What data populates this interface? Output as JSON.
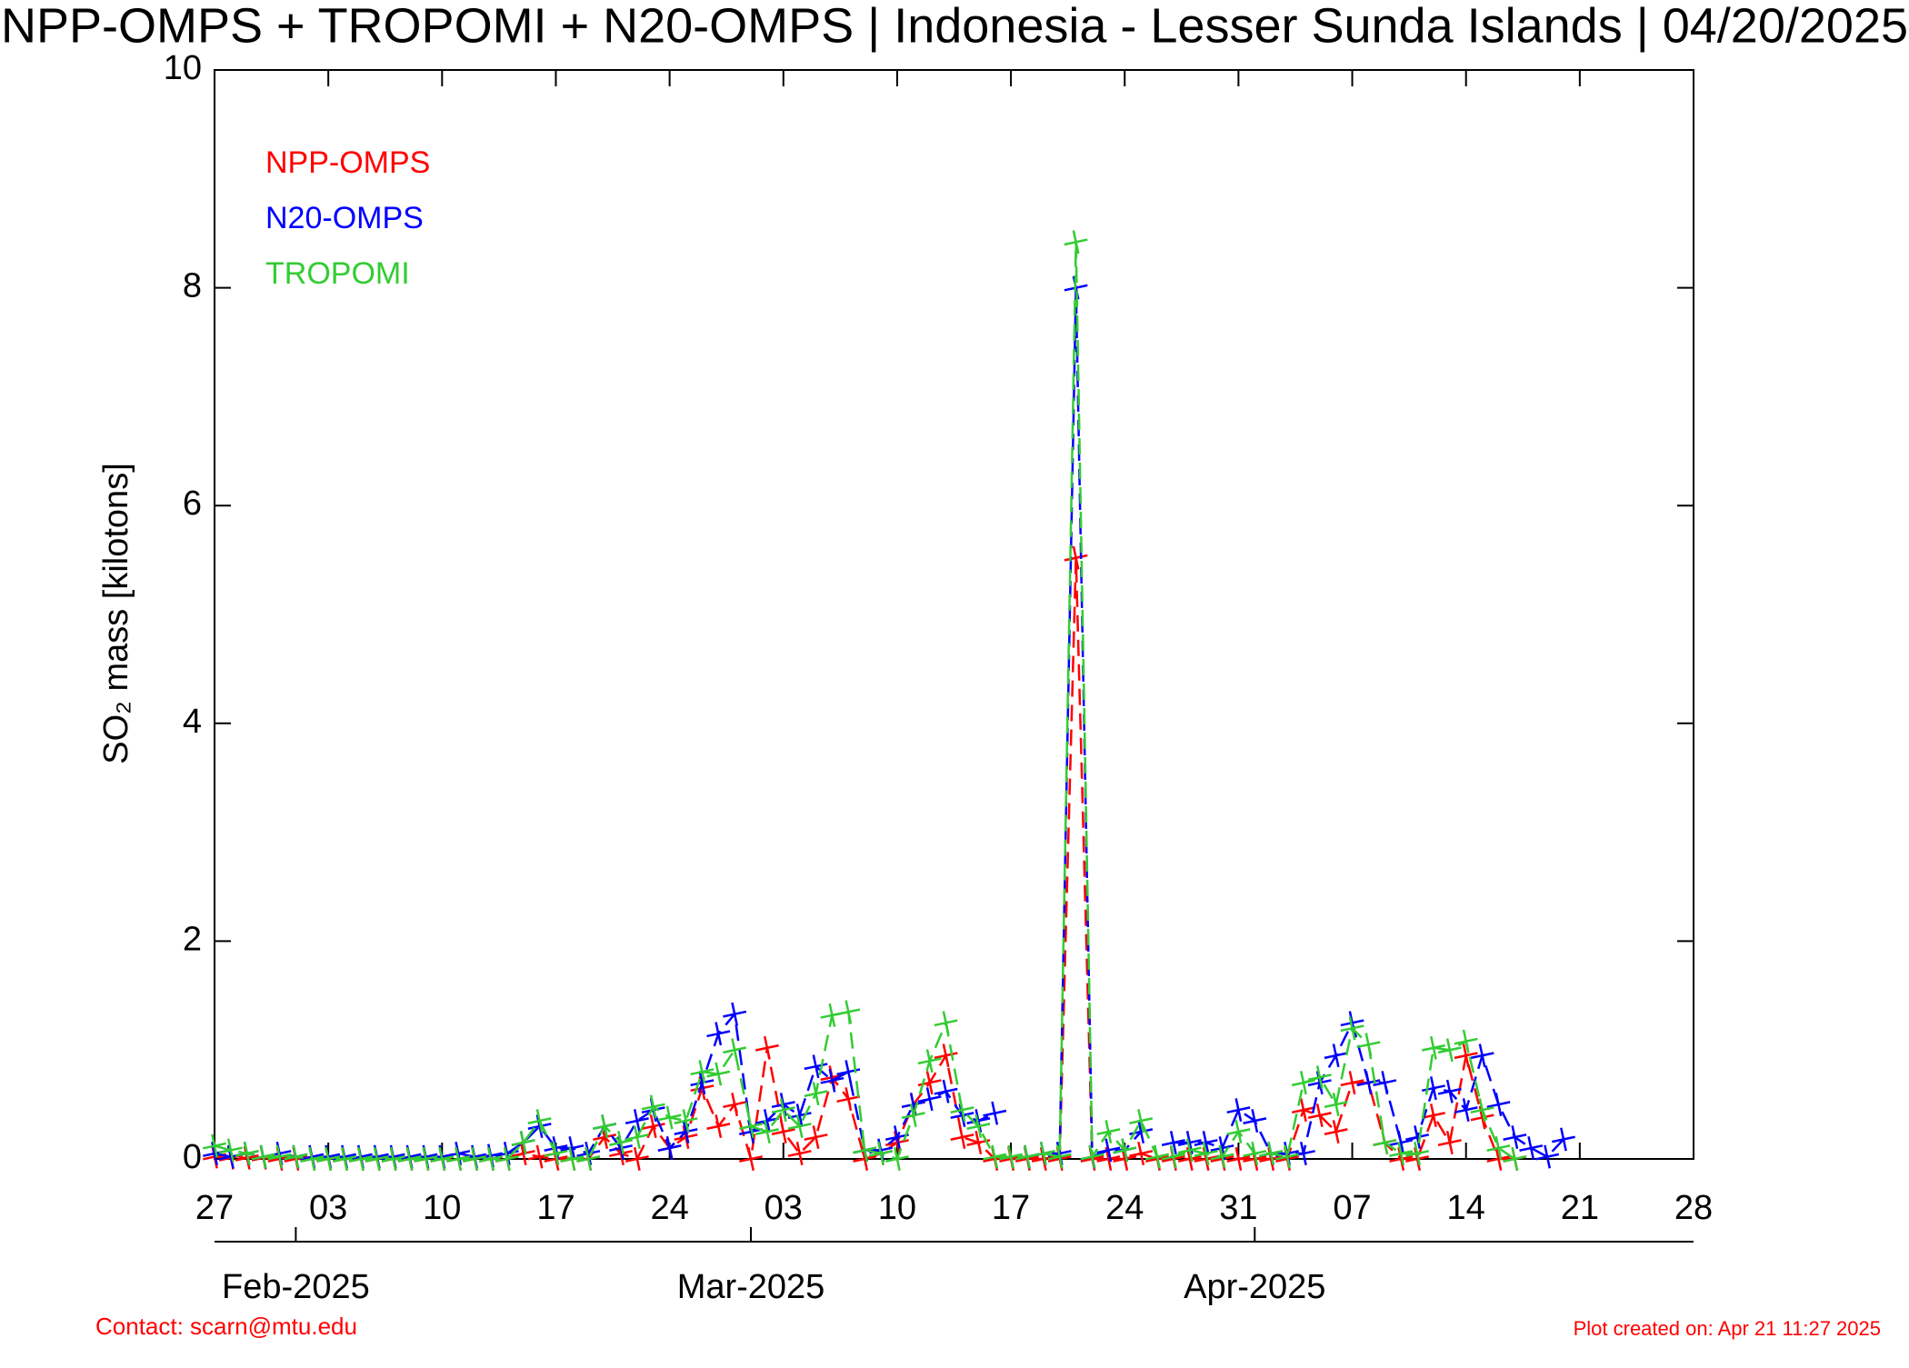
{
  "chart_data": {
    "type": "line",
    "title": "NPP-OMPS + TROPOMI + N20-OMPS | Indonesia - Lesser Sunda Islands | 04/20/2025",
    "y_label": "SO₂ mass [kilotons]",
    "contact": "Contact: scarn@mtu.edu",
    "created": "Plot created on: Apr 21 11:27 2025",
    "x": [
      "2025-01-27",
      "2025-01-28",
      "2025-01-29",
      "2025-01-30",
      "2025-01-31",
      "2025-02-01",
      "2025-02-02",
      "2025-02-03",
      "2025-02-04",
      "2025-02-05",
      "2025-02-06",
      "2025-02-07",
      "2025-02-08",
      "2025-02-09",
      "2025-02-10",
      "2025-02-11",
      "2025-02-12",
      "2025-02-13",
      "2025-02-14",
      "2025-02-15",
      "2025-02-16",
      "2025-02-17",
      "2025-02-18",
      "2025-02-19",
      "2025-02-20",
      "2025-02-21",
      "2025-02-22",
      "2025-02-23",
      "2025-02-24",
      "2025-02-25",
      "2025-02-26",
      "2025-02-27",
      "2025-02-28",
      "2025-03-01",
      "2025-03-02",
      "2025-03-03",
      "2025-03-04",
      "2025-03-05",
      "2025-03-06",
      "2025-03-07",
      "2025-03-08",
      "2025-03-09",
      "2025-03-10",
      "2025-03-11",
      "2025-03-12",
      "2025-03-13",
      "2025-03-14",
      "2025-03-15",
      "2025-03-16",
      "2025-03-17",
      "2025-03-18",
      "2025-03-19",
      "2025-03-20",
      "2025-03-21",
      "2025-03-22",
      "2025-03-23",
      "2025-03-24",
      "2025-03-25",
      "2025-03-26",
      "2025-03-27",
      "2025-03-28",
      "2025-03-29",
      "2025-03-30",
      "2025-03-31",
      "2025-04-01",
      "2025-04-02",
      "2025-04-03",
      "2025-04-04",
      "2025-04-05",
      "2025-04-06",
      "2025-04-07",
      "2025-04-08",
      "2025-04-09",
      "2025-04-10",
      "2025-04-11",
      "2025-04-12",
      "2025-04-13",
      "2025-04-14",
      "2025-04-15",
      "2025-04-16",
      "2025-04-17",
      "2025-04-18",
      "2025-04-19",
      "2025-04-20"
    ],
    "series": [
      {
        "name": "NPP-OMPS",
        "color": "#ff0000",
        "values": [
          0.02,
          0.01,
          0.01,
          0.01,
          0.0,
          0.0,
          0.0,
          0.0,
          0.0,
          0.0,
          0.0,
          0.0,
          0.0,
          0.0,
          0.0,
          0.0,
          0.0,
          0.0,
          0.0,
          0.05,
          0.02,
          0.0,
          0.0,
          0.0,
          0.2,
          0.05,
          0.0,
          0.3,
          0.1,
          0.2,
          0.65,
          0.3,
          0.5,
          0.0,
          1.02,
          0.25,
          0.05,
          0.2,
          0.75,
          0.55,
          0.0,
          0.05,
          0.15,
          0.5,
          0.7,
          0.95,
          0.2,
          0.15,
          0.0,
          0.0,
          0.0,
          0.0,
          0.0,
          5.52,
          0.0,
          0.0,
          0.0,
          0.05,
          0.0,
          0.0,
          0.0,
          0.0,
          0.0,
          0.0,
          0.0,
          0.0,
          0.0,
          0.45,
          0.4,
          0.25,
          0.7,
          0.7,
          0.15,
          0.0,
          0.0,
          0.4,
          0.15,
          0.95,
          0.38,
          0.0,
          0.0,
          null,
          null,
          null
        ]
      },
      {
        "name": "N20-OMPS",
        "color": "#0000ff",
        "values": [
          0.05,
          0.02,
          0.05,
          0.02,
          0.05,
          0.02,
          0.02,
          0.02,
          0.02,
          0.02,
          0.02,
          0.02,
          0.02,
          0.02,
          0.02,
          0.05,
          0.02,
          0.03,
          0.05,
          0.15,
          0.3,
          0.1,
          0.1,
          0.05,
          0.3,
          0.1,
          0.35,
          0.45,
          0.1,
          0.25,
          0.7,
          1.15,
          1.33,
          0.25,
          0.35,
          0.5,
          0.4,
          0.85,
          0.72,
          0.8,
          0.08,
          0.08,
          0.2,
          0.5,
          0.55,
          0.62,
          0.4,
          0.35,
          0.42,
          null,
          0.02,
          0.05,
          0.05,
          8.0,
          0.02,
          0.08,
          0.08,
          0.25,
          null,
          0.15,
          0.15,
          0.15,
          0.1,
          0.45,
          0.35,
          0.05,
          0.05,
          0.05,
          0.7,
          0.95,
          1.25,
          0.7,
          0.7,
          0.15,
          0.2,
          0.65,
          0.62,
          0.45,
          0.95,
          0.5,
          0.2,
          0.1,
          0.02,
          0.18
        ]
      },
      {
        "name": "TROPOMI",
        "color": "#33cc33",
        "values": [
          0.12,
          0.08,
          0.05,
          0.02,
          0.02,
          0.02,
          0.0,
          0.0,
          0.0,
          0.0,
          0.0,
          0.0,
          0.0,
          0.0,
          0.0,
          0.0,
          0.0,
          0.0,
          0.0,
          0.15,
          0.35,
          0.05,
          0.0,
          0.0,
          0.3,
          0.15,
          0.2,
          0.48,
          0.38,
          0.35,
          0.8,
          0.78,
          1.0,
          0.3,
          0.25,
          0.45,
          0.3,
          0.6,
          1.32,
          1.35,
          0.08,
          0.05,
          0.0,
          0.4,
          0.9,
          1.25,
          0.45,
          0.3,
          0.02,
          0.02,
          0.02,
          0.05,
          0.02,
          8.42,
          0.02,
          0.25,
          0.08,
          0.35,
          0.02,
          0.02,
          0.08,
          0.05,
          0.02,
          0.25,
          0.05,
          0.05,
          0.02,
          0.7,
          0.75,
          0.5,
          1.2,
          1.05,
          0.15,
          0.05,
          0.05,
          1.02,
          1.0,
          1.08,
          0.45,
          0.1,
          0.0,
          null,
          null,
          null
        ]
      }
    ],
    "xlim": [
      "2025-01-27",
      "2025-04-28"
    ],
    "xticks": [
      {
        "value": "2025-01-27",
        "label": "27"
      },
      {
        "value": "2025-02-03",
        "label": "03"
      },
      {
        "value": "2025-02-10",
        "label": "10"
      },
      {
        "value": "2025-02-17",
        "label": "17"
      },
      {
        "value": "2025-02-24",
        "label": "24"
      },
      {
        "value": "2025-03-03",
        "label": "03"
      },
      {
        "value": "2025-03-10",
        "label": "10"
      },
      {
        "value": "2025-03-17",
        "label": "17"
      },
      {
        "value": "2025-03-24",
        "label": "24"
      },
      {
        "value": "2025-03-31",
        "label": "31"
      },
      {
        "value": "2025-04-07",
        "label": "07"
      },
      {
        "value": "2025-04-14",
        "label": "14"
      },
      {
        "value": "2025-04-21",
        "label": "21"
      },
      {
        "value": "2025-04-28",
        "label": "28"
      }
    ],
    "month_ticks": [
      {
        "value": "2025-02-01",
        "label": "Feb-2025"
      },
      {
        "value": "2025-03-01",
        "label": "Mar-2025"
      },
      {
        "value": "2025-04-01",
        "label": "Apr-2025"
      }
    ],
    "ylim": [
      0,
      10
    ],
    "yticks": [
      0,
      2,
      4,
      6,
      8,
      10
    ],
    "legend": "upper left",
    "line_style": "dashed",
    "marker": "+"
  }
}
